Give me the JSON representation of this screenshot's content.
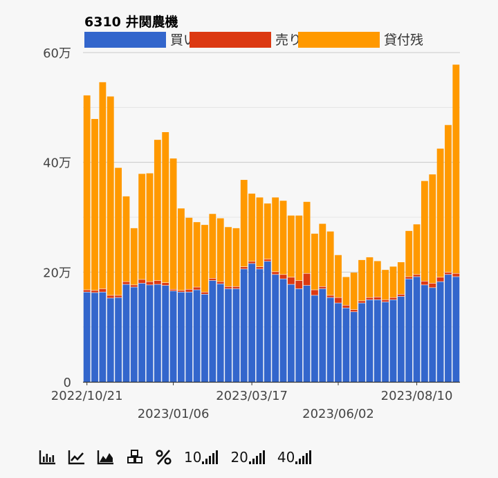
{
  "chart_data": {
    "type": "bar",
    "stacked": true,
    "title": "6310 井関農機",
    "ylim": [
      0,
      600000
    ],
    "yticks": [
      0,
      200000,
      400000,
      600000
    ],
    "ytick_labels": [
      "0",
      "20万",
      "40万",
      "60万"
    ],
    "legend_position": "top",
    "grid": true,
    "xtick_labels": [
      {
        "label": "2022/10/21",
        "index": 0,
        "row": 0
      },
      {
        "label": "2023/01/06",
        "index": 11,
        "row": 1
      },
      {
        "label": "2023/03/17",
        "index": 21,
        "row": 0
      },
      {
        "label": "2023/06/02",
        "index": 32,
        "row": 1
      },
      {
        "label": "2023/08/10",
        "index": 42,
        "row": 0
      }
    ],
    "series": [
      {
        "name": "買い残",
        "color": "#3366cc",
        "values": [
          164000,
          163000,
          164000,
          153000,
          154000,
          178000,
          173000,
          180000,
          177000,
          178000,
          176000,
          166000,
          164000,
          164000,
          168000,
          160000,
          185000,
          179000,
          170000,
          170000,
          206000,
          216000,
          206000,
          220000,
          196000,
          188000,
          178000,
          170000,
          176000,
          158000,
          170000,
          154000,
          144000,
          135000,
          128000,
          144000,
          150000,
          150000,
          146000,
          150000,
          156000,
          188000,
          192000,
          177000,
          172000,
          183000,
          196000,
          192000
        ]
      },
      {
        "name": "売り残",
        "color": "#dc3912",
        "values": [
          4000,
          4000,
          6000,
          5000,
          4000,
          5000,
          4000,
          7000,
          6000,
          7000,
          5000,
          3000,
          3000,
          5000,
          5000,
          4000,
          4000,
          4000,
          4000,
          4000,
          4000,
          4000,
          4000,
          4000,
          5000,
          8000,
          13000,
          15000,
          22000,
          10000,
          4000,
          4000,
          10000,
          5000,
          4000,
          4000,
          4000,
          5000,
          4000,
          4000,
          4000,
          4000,
          4000,
          7000,
          8000,
          8000,
          4000,
          6000
        ]
      },
      {
        "name": "貸付残",
        "color": "#ff9900",
        "values": [
          354000,
          312000,
          376000,
          362000,
          232000,
          155000,
          103000,
          192000,
          197000,
          256000,
          274000,
          238000,
          149000,
          130000,
          118000,
          122000,
          117000,
          115000,
          108000,
          106000,
          158000,
          123000,
          126000,
          101000,
          135000,
          134000,
          112000,
          118000,
          130000,
          102000,
          114000,
          116000,
          77000,
          51000,
          67000,
          74000,
          73000,
          65000,
          54000,
          56000,
          58000,
          83000,
          91000,
          182000,
          198000,
          234000,
          268000,
          380000
        ]
      }
    ]
  },
  "toolbar": {
    "labels": {
      "n10": "10",
      "n20": "20",
      "n40": "40"
    }
  }
}
